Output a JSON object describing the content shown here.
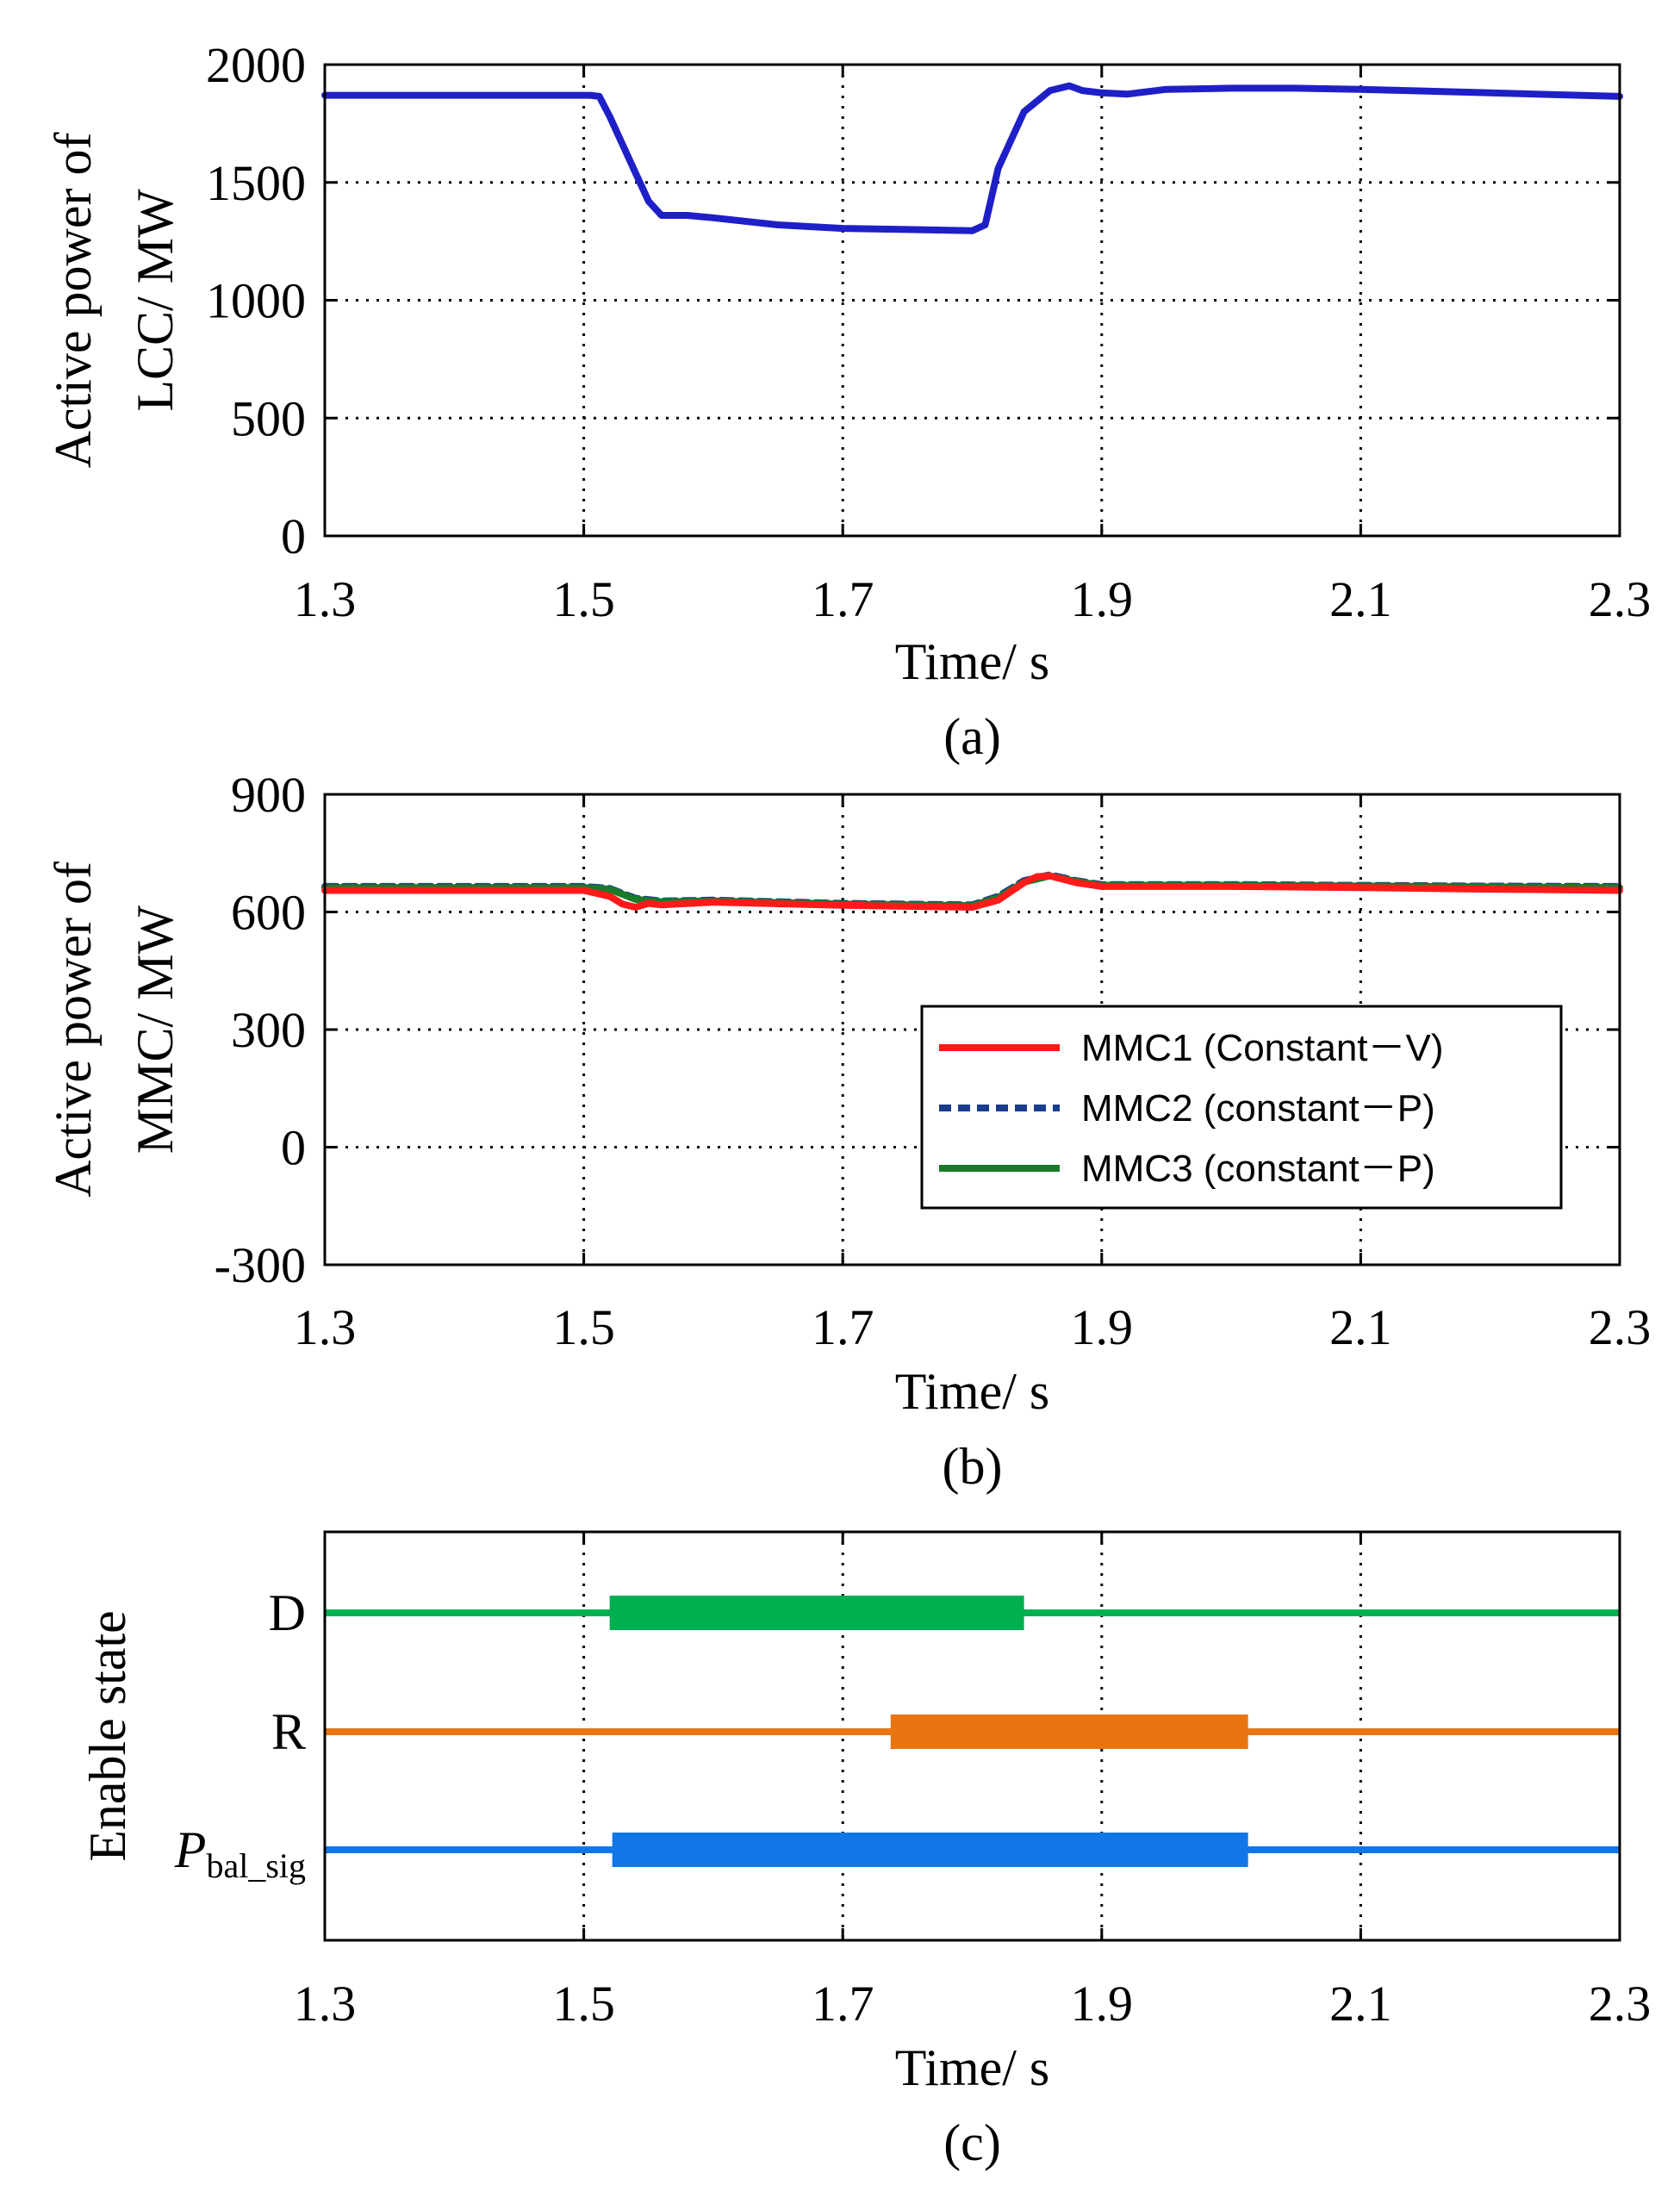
{
  "chart_data": [
    {
      "id": "a",
      "type": "line",
      "ylabel_lines": [
        "Active power of",
        "LCC/ MW"
      ],
      "xlabel": "Time/ s",
      "caption": "(a)",
      "xlim": [
        1.3,
        2.3
      ],
      "ylim": [
        0,
        2000
      ],
      "xticks": [
        "1.3",
        "1.5",
        "1.7",
        "1.9",
        "2.1",
        "2.3"
      ],
      "yticks": [
        "0",
        "500",
        "1000",
        "1500",
        "2000"
      ],
      "grid": true,
      "series": [
        {
          "name": "LCC",
          "color": "#1f1fc8",
          "style": "solid",
          "x": [
            1.3,
            1.505,
            1.512,
            1.52,
            1.53,
            1.54,
            1.55,
            1.56,
            1.58,
            1.6,
            1.65,
            1.7,
            1.75,
            1.8,
            1.81,
            1.82,
            1.84,
            1.86,
            1.875,
            1.885,
            1.9,
            1.92,
            1.95,
            2.0,
            2.05,
            2.1,
            2.2,
            2.3
          ],
          "values": [
            1870,
            1870,
            1865,
            1780,
            1660,
            1540,
            1420,
            1360,
            1360,
            1350,
            1320,
            1305,
            1300,
            1295,
            1320,
            1560,
            1800,
            1890,
            1910,
            1890,
            1880,
            1875,
            1895,
            1900,
            1900,
            1895,
            1880,
            1865
          ]
        }
      ]
    },
    {
      "id": "b",
      "type": "line",
      "ylabel_lines": [
        "Active power of",
        "MMC/ MW"
      ],
      "xlabel": "Time/ s",
      "caption": "(b)",
      "xlim": [
        1.3,
        2.3
      ],
      "ylim": [
        -300,
        900
      ],
      "xticks": [
        "1.3",
        "1.5",
        "1.7",
        "1.9",
        "2.1",
        "2.3"
      ],
      "yticks": [
        "-300",
        "0",
        "300",
        "600",
        "900"
      ],
      "grid": true,
      "legend": "center-right",
      "series": [
        {
          "name": "MMC2 (constant－P)",
          "color": "#1a3c8c",
          "style": "dashed",
          "x": [
            1.3,
            1.5,
            1.52,
            1.54,
            1.56,
            1.6,
            1.7,
            1.8,
            1.82,
            1.84,
            1.86,
            1.88,
            1.9,
            2.0,
            2.1,
            2.2,
            2.3
          ],
          "values": [
            665,
            665,
            660,
            635,
            628,
            630,
            622,
            618,
            640,
            680,
            695,
            680,
            670,
            670,
            668,
            666,
            665
          ]
        },
        {
          "name": "MMC3 (constant－P)",
          "color": "#1a7a2a",
          "style": "solid",
          "x": [
            1.3,
            1.5,
            1.52,
            1.54,
            1.56,
            1.6,
            1.7,
            1.8,
            1.82,
            1.84,
            1.86,
            1.88,
            1.9,
            2.0,
            2.1,
            2.2,
            2.3
          ],
          "values": [
            662,
            662,
            658,
            632,
            626,
            628,
            620,
            616,
            636,
            676,
            692,
            678,
            668,
            668,
            666,
            664,
            662
          ]
        },
        {
          "name": "MMC1 (Constant－V)",
          "color": "#ff1a1a",
          "style": "solid",
          "x": [
            1.3,
            1.5,
            1.52,
            1.53,
            1.54,
            1.55,
            1.56,
            1.6,
            1.7,
            1.8,
            1.82,
            1.84,
            1.85,
            1.86,
            1.88,
            1.9,
            2.0,
            2.1,
            2.2,
            2.3
          ],
          "values": [
            655,
            655,
            640,
            620,
            612,
            622,
            618,
            625,
            617,
            612,
            630,
            675,
            690,
            692,
            675,
            665,
            665,
            662,
            658,
            655
          ]
        }
      ]
    },
    {
      "id": "c",
      "type": "timeline",
      "ylabel": "Enable state",
      "xlabel": "Time/ s",
      "caption": "(c)",
      "xlim": [
        1.3,
        2.3
      ],
      "xticks": [
        "1.3",
        "1.5",
        "1.7",
        "1.9",
        "2.1",
        "2.3"
      ],
      "grid_x": true,
      "lanes": [
        {
          "label": "D",
          "sub": "",
          "italic": false,
          "color": "#00b050",
          "active": [
            1.52,
            1.84
          ]
        },
        {
          "label": "R",
          "sub": "",
          "italic": false,
          "color": "#e87511",
          "active": [
            1.737,
            2.013
          ]
        },
        {
          "label": "P",
          "sub": "bal_sig",
          "italic": true,
          "color": "#1177e8",
          "active": [
            1.522,
            2.013
          ]
        }
      ]
    }
  ]
}
